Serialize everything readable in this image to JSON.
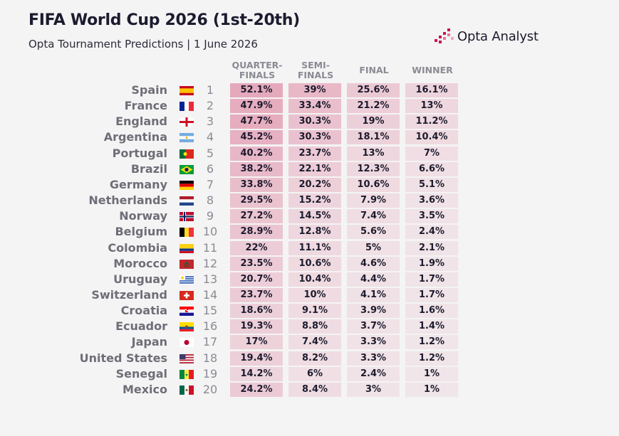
{
  "title": "FIFA World Cup 2026 (1st-20th)",
  "subtitle": "Opta Tournament Predictions | 1 June 2026",
  "logo": {
    "text": "Opta Analyst",
    "color": "#c8174f"
  },
  "colors": {
    "cell_base": "#c8174f",
    "text": "#1c1b2e",
    "label": "#6e6e78"
  },
  "columns": [
    "QUARTER-FINALS",
    "SEMI-FINALS",
    "FINAL",
    "WINNER"
  ],
  "column_lines": [
    [
      "QUARTER-",
      "FINALS"
    ],
    [
      "SEMI-",
      "FINALS"
    ],
    [
      "FINAL"
    ],
    [
      "WINNER"
    ]
  ],
  "chart_data": {
    "type": "table",
    "title": "FIFA World Cup 2026 (1st-20th)",
    "subtitle": "Opta Tournament Predictions | 1 June 2026",
    "columns": [
      "Rank",
      "Team",
      "QUARTER-FINALS",
      "SEMI-FINALS",
      "FINAL",
      "WINNER"
    ],
    "rows": [
      {
        "rank": "1",
        "team": "Spain",
        "flag": "spain-flag-icon",
        "qf": "52.1%",
        "sf": "39%",
        "f": "25.6%",
        "w": "16.1%"
      },
      {
        "rank": "2",
        "team": "France",
        "flag": "france-flag-icon",
        "qf": "47.9%",
        "sf": "33.4%",
        "f": "21.2%",
        "w": "13%"
      },
      {
        "rank": "3",
        "team": "England",
        "flag": "england-flag-icon",
        "qf": "47.7%",
        "sf": "30.3%",
        "f": "19%",
        "w": "11.2%"
      },
      {
        "rank": "4",
        "team": "Argentina",
        "flag": "argentina-flag-icon",
        "qf": "45.2%",
        "sf": "30.3%",
        "f": "18.1%",
        "w": "10.4%"
      },
      {
        "rank": "5",
        "team": "Portugal",
        "flag": "portugal-flag-icon",
        "qf": "40.2%",
        "sf": "23.7%",
        "f": "13%",
        "w": "7%"
      },
      {
        "rank": "6",
        "team": "Brazil",
        "flag": "brazil-flag-icon",
        "qf": "38.2%",
        "sf": "22.1%",
        "f": "12.3%",
        "w": "6.6%"
      },
      {
        "rank": "7",
        "team": "Germany",
        "flag": "germany-flag-icon",
        "qf": "33.8%",
        "sf": "20.2%",
        "f": "10.6%",
        "w": "5.1%"
      },
      {
        "rank": "8",
        "team": "Netherlands",
        "flag": "netherlands-flag-icon",
        "qf": "29.5%",
        "sf": "15.2%",
        "f": "7.9%",
        "w": "3.6%"
      },
      {
        "rank": "9",
        "team": "Norway",
        "flag": "norway-flag-icon",
        "qf": "27.2%",
        "sf": "14.5%",
        "f": "7.4%",
        "w": "3.5%"
      },
      {
        "rank": "10",
        "team": "Belgium",
        "flag": "belgium-flag-icon",
        "qf": "28.9%",
        "sf": "12.8%",
        "f": "5.6%",
        "w": "2.4%"
      },
      {
        "rank": "11",
        "team": "Colombia",
        "flag": "colombia-flag-icon",
        "qf": "22%",
        "sf": "11.1%",
        "f": "5%",
        "w": "2.1%"
      },
      {
        "rank": "12",
        "team": "Morocco",
        "flag": "morocco-flag-icon",
        "qf": "23.5%",
        "sf": "10.6%",
        "f": "4.6%",
        "w": "1.9%"
      },
      {
        "rank": "13",
        "team": "Uruguay",
        "flag": "uruguay-flag-icon",
        "qf": "20.7%",
        "sf": "10.4%",
        "f": "4.4%",
        "w": "1.7%"
      },
      {
        "rank": "14",
        "team": "Switzerland",
        "flag": "switzerland-flag-icon",
        "qf": "23.7%",
        "sf": "10%",
        "f": "4.1%",
        "w": "1.7%"
      },
      {
        "rank": "15",
        "team": "Croatia",
        "flag": "croatia-flag-icon",
        "qf": "18.6%",
        "sf": "9.1%",
        "f": "3.9%",
        "w": "1.6%"
      },
      {
        "rank": "16",
        "team": "Ecuador",
        "flag": "ecuador-flag-icon",
        "qf": "19.3%",
        "sf": "8.8%",
        "f": "3.7%",
        "w": "1.4%"
      },
      {
        "rank": "17",
        "team": "Japan",
        "flag": "japan-flag-icon",
        "qf": "17%",
        "sf": "7.4%",
        "f": "3.3%",
        "w": "1.2%"
      },
      {
        "rank": "18",
        "team": "United States",
        "flag": "usa-flag-icon",
        "qf": "19.4%",
        "sf": "8.2%",
        "f": "3.3%",
        "w": "1.2%"
      },
      {
        "rank": "19",
        "team": "Senegal",
        "flag": "senegal-flag-icon",
        "qf": "14.2%",
        "sf": "6%",
        "f": "2.4%",
        "w": "1%"
      },
      {
        "rank": "20",
        "team": "Mexico",
        "flag": "mexico-flag-icon",
        "qf": "24.2%",
        "sf": "8.4%",
        "f": "3%",
        "w": "1%"
      }
    ]
  }
}
